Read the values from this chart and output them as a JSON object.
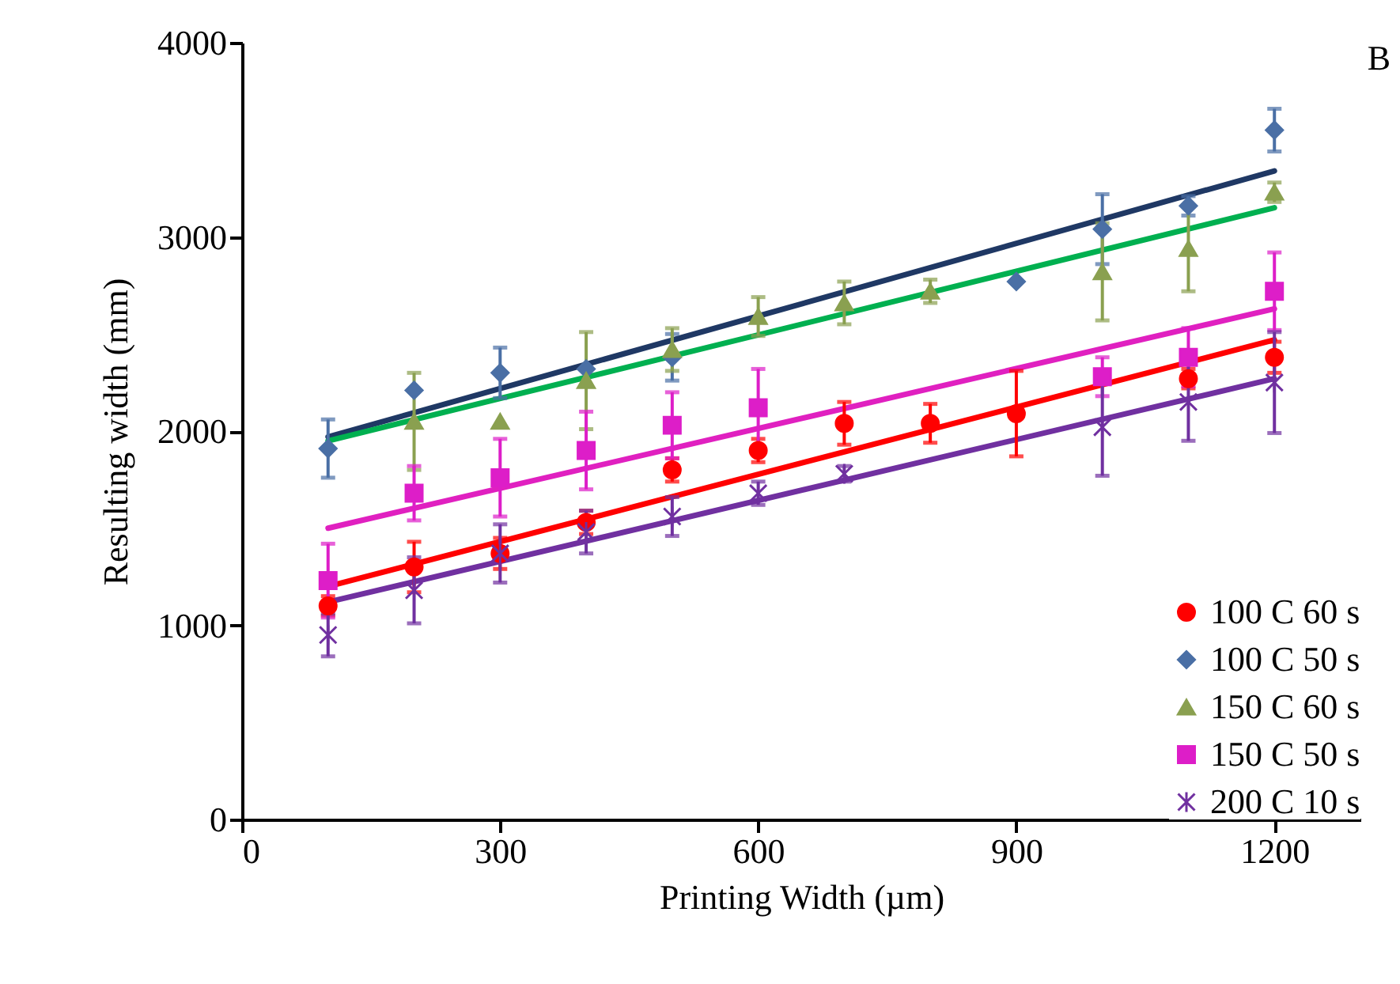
{
  "chart_data": {
    "type": "scatter",
    "xlabel": "Printing Width (µm)",
    "ylabel": "Resulting width (mm)",
    "annotations": [
      "B"
    ],
    "xlim": [
      0,
      1300
    ],
    "xticks": [
      0,
      300,
      600,
      900,
      1200
    ],
    "ylim": [
      0,
      4000
    ],
    "yticks": [
      0,
      1000,
      2000,
      3000,
      4000
    ],
    "grid": false,
    "legend": "bottom right",
    "series": [
      {
        "name": "100 C 60 s",
        "color": "#ff0000",
        "marker": "circle",
        "x": [
          100,
          200,
          300,
          400,
          500,
          600,
          700,
          800,
          900,
          1100,
          1200
        ],
        "values": [
          1100,
          1300,
          1370,
          1530,
          1800,
          1900,
          2040,
          2040,
          2090,
          2270,
          2380
        ],
        "errors": [
          50,
          130,
          80,
          60,
          60,
          60,
          110,
          100,
          220,
          50,
          80
        ]
      },
      {
        "name": "100 C 50 s",
        "color": "#4a6fa5",
        "marker": "diamond",
        "x": [
          100,
          200,
          300,
          400,
          500,
          900,
          1000,
          1100,
          1200
        ],
        "values": [
          1910,
          2210,
          2300,
          2320,
          2380,
          2770,
          3040,
          3160,
          3550
        ],
        "errors": [
          150,
          null,
          130,
          null,
          120,
          null,
          180,
          50,
          110
        ]
      },
      {
        "name": "150 C 60 s",
        "color": "#8aa050",
        "marker": "triangle",
        "x": [
          200,
          300,
          400,
          500,
          600,
          700,
          800,
          1000,
          1100,
          1200
        ],
        "values": [
          2050,
          2050,
          2260,
          2420,
          2590,
          2660,
          2720,
          2820,
          2940,
          3230
        ],
        "errors": [
          250,
          null,
          250,
          110,
          100,
          110,
          60,
          250,
          220,
          50
        ]
      },
      {
        "name": "150 C 50 s",
        "color": "#dd1ec8",
        "marker": "square",
        "x": [
          100,
          200,
          300,
          400,
          500,
          600,
          1000,
          1100,
          1200
        ],
        "values": [
          1230,
          1680,
          1760,
          1900,
          2030,
          2120,
          2280,
          2380,
          2720
        ],
        "errors": [
          190,
          140,
          200,
          200,
          170,
          200,
          100,
          150,
          200
        ]
      },
      {
        "name": "200 C 10 s",
        "color": "#7030a0",
        "marker": "cross",
        "x": [
          100,
          200,
          300,
          400,
          500,
          600,
          700,
          1000,
          1100,
          1200
        ],
        "values": [
          950,
          1180,
          1370,
          1480,
          1560,
          1680,
          1780,
          2020,
          2150,
          2250
        ],
        "errors": [
          110,
          170,
          150,
          110,
          100,
          60,
          40,
          250,
          200,
          260
        ]
      },
      {
        "type": "line",
        "color": "#ff0000",
        "x": [
          100,
          1200
        ],
        "values": [
          1200,
          2470
        ]
      },
      {
        "type": "line",
        "color": "#1f3864",
        "x": [
          100,
          1200
        ],
        "values": [
          1970,
          3340
        ]
      },
      {
        "type": "line",
        "color": "#00b050",
        "x": [
          100,
          1200
        ],
        "values": [
          1950,
          3150
        ]
      },
      {
        "type": "line",
        "color": "#e020c0",
        "x": [
          100,
          1200
        ],
        "values": [
          1500,
          2630
        ]
      },
      {
        "type": "line",
        "color": "#7030a0",
        "x": [
          100,
          1200
        ],
        "values": [
          1120,
          2270
        ]
      }
    ]
  }
}
